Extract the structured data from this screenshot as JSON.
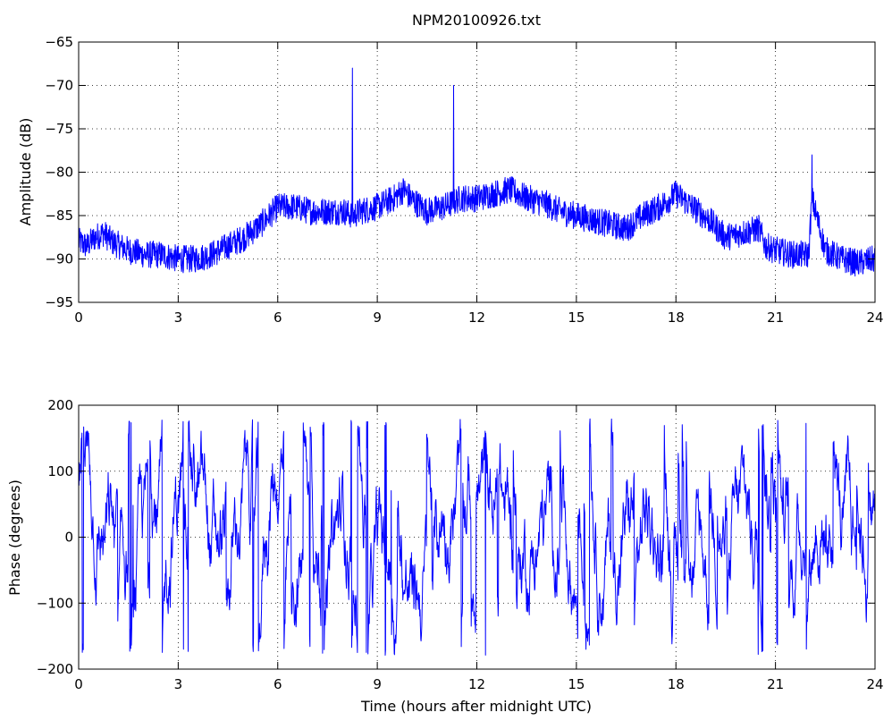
{
  "chart_data": [
    {
      "type": "line",
      "title": "NPM20100926.txt",
      "xlabel": "",
      "ylabel": "Amplitude (dB)",
      "xlim": [
        0,
        24
      ],
      "ylim": [
        -95,
        -65
      ],
      "xticks": [
        0,
        3,
        6,
        9,
        12,
        15,
        18,
        21,
        24
      ],
      "yticks": [
        -95,
        -90,
        -85,
        -80,
        -75,
        -70,
        -65
      ],
      "grid": true,
      "color": "#0000ff",
      "series": [
        {
          "x": [
            0,
            0.25,
            0.5,
            0.75,
            1.0,
            1.5,
            2.0,
            2.5,
            3.0,
            3.5,
            4.0,
            4.5,
            5.0,
            5.5,
            5.75,
            6.0,
            6.5,
            7.0,
            7.5,
            8.0,
            8.25,
            8.5,
            9.0,
            9.5,
            9.8,
            10.0,
            10.5,
            11.0,
            11.3,
            11.5,
            12.0,
            12.5,
            13.0,
            13.5,
            14.0,
            14.5,
            15.0,
            15.5,
            16.0,
            16.5,
            17.0,
            17.5,
            18.0,
            18.5,
            19.0,
            19.5,
            20.0,
            20.5,
            20.7,
            21.0,
            21.5,
            22.0,
            22.1,
            22.3,
            22.5,
            23.0,
            23.5,
            24.0
          ],
          "y": [
            -88,
            -88.5,
            -87.5,
            -87,
            -88,
            -89,
            -89.5,
            -89.5,
            -90,
            -90,
            -89.5,
            -88.5,
            -87.5,
            -86,
            -85,
            -84,
            -84,
            -84.5,
            -84.5,
            -84.5,
            -85,
            -84.5,
            -84,
            -83,
            -82,
            -83,
            -84.5,
            -84,
            -83.5,
            -83,
            -83,
            -82.5,
            -82,
            -83,
            -83.5,
            -84.5,
            -85,
            -85.5,
            -86,
            -86.5,
            -85,
            -84,
            -82.5,
            -84,
            -85.5,
            -87.5,
            -87,
            -86.5,
            -88.5,
            -89,
            -89.5,
            -89.5,
            -83,
            -86,
            -89,
            -90,
            -90.5,
            -90
          ],
          "spikes": [
            {
              "x": 8.25,
              "y": -68
            },
            {
              "x": 11.3,
              "y": -70
            },
            {
              "x": 22.1,
              "y": -78
            }
          ]
        }
      ]
    },
    {
      "type": "line",
      "title": "",
      "xlabel": "Time (hours after midnight UTC)",
      "ylabel": "Phase (degrees)",
      "xlim": [
        0,
        24
      ],
      "ylim": [
        -200,
        200
      ],
      "xticks": [
        0,
        3,
        6,
        9,
        12,
        15,
        18,
        21,
        24
      ],
      "yticks": [
        -200,
        -100,
        0,
        100,
        200
      ],
      "grid": true,
      "color": "#0000ff",
      "phase_range": [
        -180,
        180
      ],
      "series": [
        {
          "x": [
            0,
            1,
            2,
            3,
            4,
            5,
            6,
            7,
            8,
            9,
            10,
            11,
            12,
            13,
            14,
            15,
            16,
            17,
            18,
            19,
            20,
            21,
            22,
            23,
            24
          ],
          "y": [
            100,
            -50,
            20,
            120,
            -60,
            90,
            150,
            -100,
            40,
            -30,
            -120,
            80,
            60,
            -20,
            30,
            -90,
            10,
            50,
            -110,
            -40,
            20,
            -60,
            130,
            -70,
            0
          ]
        }
      ]
    }
  ]
}
